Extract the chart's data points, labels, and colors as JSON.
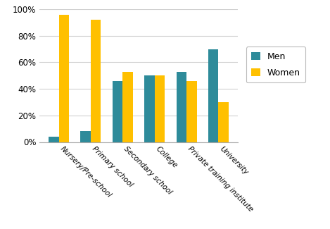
{
  "categories": [
    "Nursery/Pre-school",
    "Primary school",
    "Secondary school",
    "College",
    "Private training institute",
    "University"
  ],
  "men": [
    4,
    8,
    46,
    50,
    53,
    70
  ],
  "women": [
    96,
    92,
    53,
    50,
    46,
    30
  ],
  "men_color": "#2E8B9A",
  "women_color": "#FFC000",
  "legend_labels": [
    "Men",
    "Women"
  ],
  "ylim": [
    0,
    100
  ],
  "yticks": [
    0,
    20,
    40,
    60,
    80,
    100
  ],
  "ytick_labels": [
    "0%",
    "20%",
    "40%",
    "60%",
    "80%",
    "100%"
  ],
  "bar_width": 0.32,
  "figsize": [
    4.69,
    3.25
  ],
  "dpi": 100
}
